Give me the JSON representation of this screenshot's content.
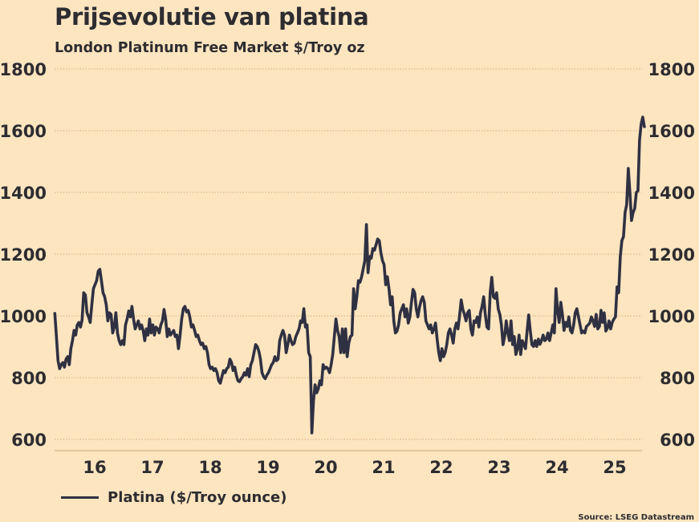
{
  "chart_data": {
    "type": "line",
    "title": "Prijsevolutie van platina",
    "subtitle": "London Platinum Free Market $/Troy oz",
    "xlabel": "",
    "ylabel": "",
    "source": "Source: LSEG Datastream",
    "ylim": [
      600,
      1800
    ],
    "yticks": [
      600,
      800,
      1000,
      1200,
      1400,
      1600,
      1800
    ],
    "ytick_labels": [
      "600",
      "800",
      "1000",
      "1200",
      "1400",
      "1600",
      "1800"
    ],
    "y_axes": "left-and-right",
    "grid": "horizontal-dotted",
    "xlim": [
      2015.81,
      2025.33
    ],
    "xticks": [
      2016.5,
      2017.5,
      2018.5,
      2019.5,
      2020.5,
      2021.5,
      2022.5,
      2023.5,
      2024.5,
      2025.5
    ],
    "xtick_labels": [
      "16",
      "17",
      "18",
      "19",
      "20",
      "21",
      "22",
      "23",
      "24",
      "25"
    ],
    "legend": {
      "position": "bottom-left",
      "entries": [
        "Platina ($/Troy ounce)"
      ]
    },
    "series": [
      {
        "name": "Platina ($/Troy ounce)",
        "color": "#2f3142",
        "x_start": 2015.81,
        "x_step_years": 0.0278,
        "values": [
          1008,
          933,
          855,
          829,
          842,
          849,
          834,
          860,
          868,
          842,
          894,
          920,
          953,
          938,
          971,
          979,
          964,
          987,
          1075,
          1068,
          1010,
          997,
          979,
          1036,
          1088,
          1101,
          1114,
          1145,
          1151,
          1114,
          1075,
          1062,
          1036,
          984,
          1010,
          1005,
          945,
          964,
          1010,
          945,
          920,
          907,
          920,
          907,
          971,
          990,
          1016,
          997,
          1031,
          990,
          958,
          971,
          984,
          958,
          971,
          953,
          920,
          958,
          938,
          990,
          945,
          971,
          938,
          964,
          958,
          945,
          971,
          984,
          1021,
          990,
          933,
          958,
          938,
          945,
          953,
          933,
          938,
          894,
          938,
          990,
          1023,
          1031,
          1013,
          1018,
          997,
          964,
          971,
          953,
          933,
          938,
          920,
          907,
          912,
          894,
          901,
          881,
          842,
          829,
          834,
          823,
          829,
          816,
          790,
          782,
          803,
          823,
          816,
          829,
          834,
          860,
          849,
          823,
          834,
          808,
          790,
          787,
          797,
          803,
          816,
          808,
          829,
          803,
          842,
          855,
          881,
          907,
          901,
          886,
          860,
          816,
          803,
          797,
          808,
          816,
          829,
          842,
          849,
          868,
          855,
          860,
          920,
          938,
          953,
          938,
          881,
          907,
          938,
          920,
          907,
          912,
          933,
          945,
          958,
          984,
          979,
          1023,
          964,
          971,
          881,
          868,
          621,
          725,
          777,
          751,
          764,
          790,
          777,
          842,
          829,
          834,
          829,
          816,
          842,
          875,
          933,
          990,
          953,
          933,
          881,
          958,
          881,
          958,
          868,
          912,
          933,
          938,
          1088,
          1023,
          1062,
          1114,
          1109,
          1127,
          1153,
          1179,
          1296,
          1140,
          1192,
          1187,
          1218,
          1213,
          1231,
          1249,
          1244,
          1205,
          1179,
          1166,
          1101,
          1127,
          1088,
          1036,
          1062,
          984,
          945,
          951,
          971,
          1010,
          1023,
          1036,
          997,
          1023,
          977,
          997,
          1044,
          1086,
          1075,
          1023,
          997,
          1028,
          1049,
          1062,
          1044,
          984,
          971,
          958,
          971,
          945,
          958,
          977,
          925,
          881,
          855,
          894,
          868,
          881,
          907,
          945,
          958,
          938,
          912,
          958,
          977,
          958,
          1001,
          1052,
          1021,
          1005,
          984,
          1010,
          1018,
          958,
          938,
          984,
          979,
          997,
          964,
          1010,
          1031,
          1062,
          1005,
          964,
          958,
          1075,
          1125,
          1062,
          1057,
          1075,
          1023,
          1005,
          971,
          907,
          933,
          984,
          945,
          920,
          984,
          907,
          933,
          875,
          894,
          938,
          875,
          920,
          907,
          894,
          951,
          1003,
          951,
          907,
          901,
          920,
          901,
          925,
          908,
          920,
          938,
          920,
          925,
          945,
          920,
          945,
          971,
          945,
          1088,
          1018,
          979,
          1044,
          1005,
          953,
          979,
          966,
          997,
          953,
          945,
          971,
          1010,
          1023,
          997,
          971,
          945,
          951,
          945,
          966,
          971,
          977,
          997,
          984,
          966,
          1005,
          958,
          966,
          1018,
          979,
          1010,
          951,
          961,
          984,
          958,
          979,
          990,
          997,
          1094,
          1075,
          1192,
          1244,
          1257,
          1335,
          1361,
          1478,
          1400,
          1309,
          1335,
          1348,
          1400,
          1405,
          1569,
          1621,
          1644,
          1613
        ]
      }
    ]
  }
}
